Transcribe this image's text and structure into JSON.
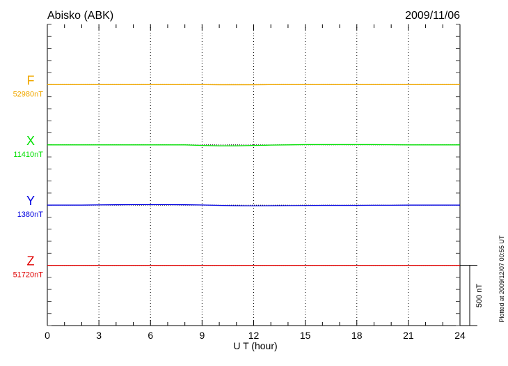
{
  "chart_data": {
    "type": "line",
    "title": "Abisko (ABK)",
    "date": "2009/11/06",
    "xlabel": "U T (hour)",
    "xlim": [
      0,
      24
    ],
    "x_ticks": [
      "0",
      "3",
      "6",
      "9",
      "12",
      "15",
      "18",
      "21",
      "24"
    ],
    "scale_bar_label": "500 nT",
    "scale_bar_nT": 500,
    "footer": "Plotted at 2009/12/07 00:55 UT",
    "grid": "vertical dotted every 3 hours",
    "x": [
      0,
      1,
      2,
      3,
      4,
      5,
      6,
      7,
      8,
      9,
      10,
      11,
      12,
      13,
      14,
      15,
      16,
      17,
      18,
      19,
      20,
      21,
      22,
      23,
      24
    ],
    "series": [
      {
        "name": "F",
        "baseline_label": "52980nT",
        "color": "#f0a800",
        "values": [
          0,
          0,
          0,
          0,
          0,
          0,
          0,
          0,
          0,
          0,
          -1,
          -1,
          -1,
          0,
          0,
          0,
          0,
          0,
          0,
          0,
          0,
          0,
          0,
          0,
          0
        ]
      },
      {
        "name": "X",
        "baseline_label": "11410nT",
        "color": "#00e000",
        "values": [
          0,
          0,
          0,
          0,
          0,
          0,
          0,
          0,
          0,
          -5,
          -8,
          -8,
          -5,
          -2,
          0,
          2,
          2,
          2,
          2,
          2,
          1,
          0,
          0,
          0,
          0
        ]
      },
      {
        "name": "Y",
        "baseline_label": "1380nT",
        "color": "#0000e0",
        "values": [
          0,
          0,
          0,
          2,
          3,
          4,
          4,
          4,
          3,
          1,
          -2,
          -5,
          -6,
          -5,
          -4,
          -3,
          -2,
          -2,
          -2,
          -1,
          -1,
          0,
          0,
          0,
          0
        ]
      },
      {
        "name": "Z",
        "baseline_label": "51720nT",
        "color": "#e00000",
        "values": [
          0,
          0,
          0,
          0,
          0,
          0,
          0,
          0,
          0,
          0,
          0,
          0,
          0,
          0,
          0,
          0,
          0,
          0,
          0,
          0,
          0,
          0,
          0,
          0,
          0
        ]
      }
    ]
  }
}
